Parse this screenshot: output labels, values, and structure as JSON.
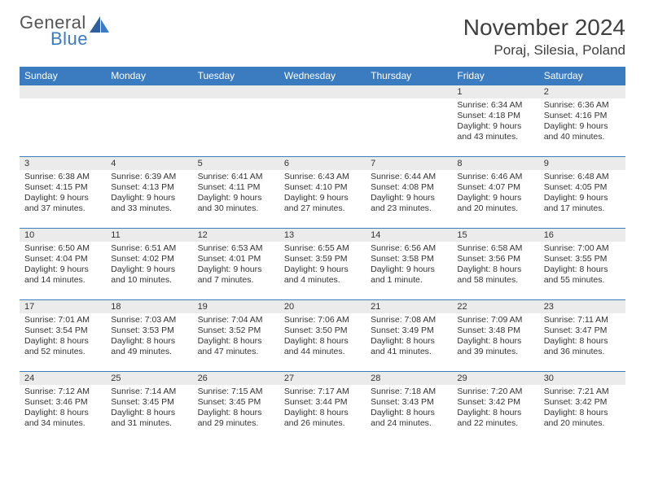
{
  "logo": {
    "text_top": "General",
    "text_bottom": "Blue"
  },
  "title": "November 2024",
  "subtitle": "Poraj, Silesia, Poland",
  "colors": {
    "header_bg": "#3b7bbf",
    "header_text": "#ffffff",
    "daynum_bg": "#ebebeb",
    "row_border": "#3b7bbf",
    "body_text": "#333333",
    "title_text": "#404040"
  },
  "weekdays": [
    "Sunday",
    "Monday",
    "Tuesday",
    "Wednesday",
    "Thursday",
    "Friday",
    "Saturday"
  ],
  "weeks": [
    [
      null,
      null,
      null,
      null,
      null,
      {
        "n": "1",
        "sr": "Sunrise: 6:34 AM",
        "ss": "Sunset: 4:18 PM",
        "d1": "Daylight: 9 hours",
        "d2": "and 43 minutes."
      },
      {
        "n": "2",
        "sr": "Sunrise: 6:36 AM",
        "ss": "Sunset: 4:16 PM",
        "d1": "Daylight: 9 hours",
        "d2": "and 40 minutes."
      }
    ],
    [
      {
        "n": "3",
        "sr": "Sunrise: 6:38 AM",
        "ss": "Sunset: 4:15 PM",
        "d1": "Daylight: 9 hours",
        "d2": "and 37 minutes."
      },
      {
        "n": "4",
        "sr": "Sunrise: 6:39 AM",
        "ss": "Sunset: 4:13 PM",
        "d1": "Daylight: 9 hours",
        "d2": "and 33 minutes."
      },
      {
        "n": "5",
        "sr": "Sunrise: 6:41 AM",
        "ss": "Sunset: 4:11 PM",
        "d1": "Daylight: 9 hours",
        "d2": "and 30 minutes."
      },
      {
        "n": "6",
        "sr": "Sunrise: 6:43 AM",
        "ss": "Sunset: 4:10 PM",
        "d1": "Daylight: 9 hours",
        "d2": "and 27 minutes."
      },
      {
        "n": "7",
        "sr": "Sunrise: 6:44 AM",
        "ss": "Sunset: 4:08 PM",
        "d1": "Daylight: 9 hours",
        "d2": "and 23 minutes."
      },
      {
        "n": "8",
        "sr": "Sunrise: 6:46 AM",
        "ss": "Sunset: 4:07 PM",
        "d1": "Daylight: 9 hours",
        "d2": "and 20 minutes."
      },
      {
        "n": "9",
        "sr": "Sunrise: 6:48 AM",
        "ss": "Sunset: 4:05 PM",
        "d1": "Daylight: 9 hours",
        "d2": "and 17 minutes."
      }
    ],
    [
      {
        "n": "10",
        "sr": "Sunrise: 6:50 AM",
        "ss": "Sunset: 4:04 PM",
        "d1": "Daylight: 9 hours",
        "d2": "and 14 minutes."
      },
      {
        "n": "11",
        "sr": "Sunrise: 6:51 AM",
        "ss": "Sunset: 4:02 PM",
        "d1": "Daylight: 9 hours",
        "d2": "and 10 minutes."
      },
      {
        "n": "12",
        "sr": "Sunrise: 6:53 AM",
        "ss": "Sunset: 4:01 PM",
        "d1": "Daylight: 9 hours",
        "d2": "and 7 minutes."
      },
      {
        "n": "13",
        "sr": "Sunrise: 6:55 AM",
        "ss": "Sunset: 3:59 PM",
        "d1": "Daylight: 9 hours",
        "d2": "and 4 minutes."
      },
      {
        "n": "14",
        "sr": "Sunrise: 6:56 AM",
        "ss": "Sunset: 3:58 PM",
        "d1": "Daylight: 9 hours",
        "d2": "and 1 minute."
      },
      {
        "n": "15",
        "sr": "Sunrise: 6:58 AM",
        "ss": "Sunset: 3:56 PM",
        "d1": "Daylight: 8 hours",
        "d2": "and 58 minutes."
      },
      {
        "n": "16",
        "sr": "Sunrise: 7:00 AM",
        "ss": "Sunset: 3:55 PM",
        "d1": "Daylight: 8 hours",
        "d2": "and 55 minutes."
      }
    ],
    [
      {
        "n": "17",
        "sr": "Sunrise: 7:01 AM",
        "ss": "Sunset: 3:54 PM",
        "d1": "Daylight: 8 hours",
        "d2": "and 52 minutes."
      },
      {
        "n": "18",
        "sr": "Sunrise: 7:03 AM",
        "ss": "Sunset: 3:53 PM",
        "d1": "Daylight: 8 hours",
        "d2": "and 49 minutes."
      },
      {
        "n": "19",
        "sr": "Sunrise: 7:04 AM",
        "ss": "Sunset: 3:52 PM",
        "d1": "Daylight: 8 hours",
        "d2": "and 47 minutes."
      },
      {
        "n": "20",
        "sr": "Sunrise: 7:06 AM",
        "ss": "Sunset: 3:50 PM",
        "d1": "Daylight: 8 hours",
        "d2": "and 44 minutes."
      },
      {
        "n": "21",
        "sr": "Sunrise: 7:08 AM",
        "ss": "Sunset: 3:49 PM",
        "d1": "Daylight: 8 hours",
        "d2": "and 41 minutes."
      },
      {
        "n": "22",
        "sr": "Sunrise: 7:09 AM",
        "ss": "Sunset: 3:48 PM",
        "d1": "Daylight: 8 hours",
        "d2": "and 39 minutes."
      },
      {
        "n": "23",
        "sr": "Sunrise: 7:11 AM",
        "ss": "Sunset: 3:47 PM",
        "d1": "Daylight: 8 hours",
        "d2": "and 36 minutes."
      }
    ],
    [
      {
        "n": "24",
        "sr": "Sunrise: 7:12 AM",
        "ss": "Sunset: 3:46 PM",
        "d1": "Daylight: 8 hours",
        "d2": "and 34 minutes."
      },
      {
        "n": "25",
        "sr": "Sunrise: 7:14 AM",
        "ss": "Sunset: 3:45 PM",
        "d1": "Daylight: 8 hours",
        "d2": "and 31 minutes."
      },
      {
        "n": "26",
        "sr": "Sunrise: 7:15 AM",
        "ss": "Sunset: 3:45 PM",
        "d1": "Daylight: 8 hours",
        "d2": "and 29 minutes."
      },
      {
        "n": "27",
        "sr": "Sunrise: 7:17 AM",
        "ss": "Sunset: 3:44 PM",
        "d1": "Daylight: 8 hours",
        "d2": "and 26 minutes."
      },
      {
        "n": "28",
        "sr": "Sunrise: 7:18 AM",
        "ss": "Sunset: 3:43 PM",
        "d1": "Daylight: 8 hours",
        "d2": "and 24 minutes."
      },
      {
        "n": "29",
        "sr": "Sunrise: 7:20 AM",
        "ss": "Sunset: 3:42 PM",
        "d1": "Daylight: 8 hours",
        "d2": "and 22 minutes."
      },
      {
        "n": "30",
        "sr": "Sunrise: 7:21 AM",
        "ss": "Sunset: 3:42 PM",
        "d1": "Daylight: 8 hours",
        "d2": "and 20 minutes."
      }
    ]
  ]
}
